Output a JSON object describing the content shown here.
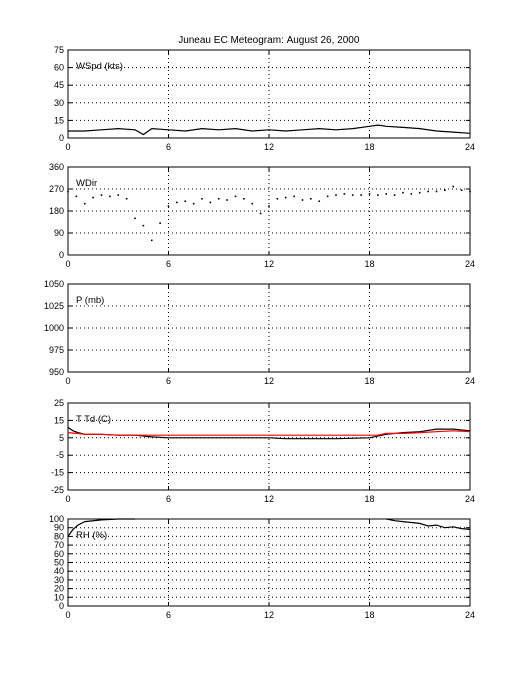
{
  "title": "Juneau EC Meteogram:",
  "date": "August 26, 2000",
  "chart_data": [
    {
      "id": "wspd",
      "type": "line",
      "label": "WSpd (kts)",
      "xlim": [
        0,
        24
      ],
      "xticks": [
        "0",
        "6",
        "12",
        "18",
        "24"
      ],
      "ylim": [
        0,
        75
      ],
      "yticks": [
        "0",
        "15",
        "30",
        "45",
        "60",
        "75"
      ],
      "grid": true,
      "series": [
        {
          "color": "#000000",
          "style": "line",
          "x": [
            0,
            1,
            2,
            3,
            4,
            4.5,
            5,
            6,
            7,
            8,
            9,
            10,
            11,
            12,
            13,
            14,
            15,
            16,
            17,
            18,
            18.5,
            19,
            20,
            21,
            22,
            23,
            24
          ],
          "y": [
            6,
            6,
            7,
            8,
            7,
            3,
            8,
            7,
            6,
            8,
            7,
            8,
            6,
            7,
            6,
            7,
            8,
            7,
            8,
            10,
            11,
            10,
            9,
            8,
            6,
            5,
            4
          ]
        }
      ]
    },
    {
      "id": "wdir",
      "type": "scatter",
      "label": "WDir",
      "xlim": [
        0,
        24
      ],
      "xticks": [
        "0",
        "6",
        "12",
        "18",
        "24"
      ],
      "ylim": [
        0,
        360
      ],
      "yticks": [
        "0",
        "90",
        "180",
        "270",
        "360"
      ],
      "grid": true,
      "series": [
        {
          "color": "#000000",
          "style": "points",
          "x": [
            0,
            0.5,
            1,
            1.5,
            2,
            2.5,
            3,
            3.5,
            4,
            4.5,
            5,
            5.5,
            6,
            6.5,
            7,
            7.5,
            8,
            8.5,
            9,
            9.5,
            10,
            10.5,
            11,
            11.5,
            12,
            12.5,
            13,
            13.5,
            14,
            14.5,
            15,
            15.5,
            16,
            16.5,
            17,
            17.5,
            18,
            18.5,
            19,
            19.5,
            20,
            20.5,
            21,
            21.5,
            22,
            22.5,
            23,
            23.5,
            24
          ],
          "y": [
            260,
            240,
            210,
            235,
            245,
            240,
            245,
            230,
            150,
            120,
            60,
            130,
            200,
            215,
            220,
            210,
            230,
            215,
            230,
            225,
            240,
            230,
            210,
            170,
            200,
            230,
            235,
            240,
            225,
            230,
            220,
            240,
            245,
            250,
            245,
            245,
            250,
            245,
            250,
            245,
            255,
            250,
            255,
            260,
            260,
            265,
            280,
            265,
            260
          ]
        }
      ]
    },
    {
      "id": "p",
      "type": "line",
      "label": "P (mb)",
      "xlim": [
        0,
        24
      ],
      "xticks": [
        "0",
        "6",
        "12",
        "18",
        "24"
      ],
      "ylim": [
        950,
        1050
      ],
      "yticks": [
        "950",
        "975",
        "1000",
        "1025",
        "1050"
      ],
      "grid": true,
      "series": []
    },
    {
      "id": "ttd",
      "type": "line",
      "label": "T Td (C)",
      "xlim": [
        0,
        24
      ],
      "xticks": [
        "0",
        "6",
        "12",
        "18",
        "24"
      ],
      "ylim": [
        -25,
        25
      ],
      "yticks": [
        "-25",
        "-15",
        "-5",
        "5",
        "15",
        "25"
      ],
      "grid": true,
      "series": [
        {
          "color": "#000000",
          "style": "line",
          "x": [
            0,
            0.3,
            0.6,
            1,
            2,
            3,
            4,
            5,
            6,
            8,
            10,
            12,
            13,
            14,
            16,
            18,
            19,
            20,
            21,
            22,
            23,
            24
          ],
          "y": [
            11,
            9,
            8,
            7,
            7,
            6.5,
            6.5,
            5.5,
            5,
            5,
            5,
            5,
            4.5,
            4.5,
            4.5,
            5,
            7,
            8,
            8.5,
            10,
            10,
            9
          ]
        },
        {
          "color": "#ff0000",
          "style": "line",
          "x": [
            0,
            0.5,
            1,
            2,
            3,
            4,
            18.5,
            19,
            20,
            21,
            22,
            23,
            24
          ],
          "y": [
            8,
            7.5,
            7,
            7,
            6.5,
            6.5,
            6.5,
            7.5,
            7.5,
            8,
            8.5,
            9,
            8.5
          ]
        }
      ]
    },
    {
      "id": "rh",
      "type": "line",
      "label": "RH (%)",
      "xlim": [
        0,
        24
      ],
      "xticks": [
        "0",
        "6",
        "12",
        "18",
        "24"
      ],
      "ylim": [
        0,
        100
      ],
      "yticks": [
        "0",
        "10",
        "20",
        "30",
        "40",
        "50",
        "60",
        "70",
        "80",
        "90",
        "100"
      ],
      "grid": true,
      "series": [
        {
          "color": "#000000",
          "style": "line",
          "x": [
            0,
            0.3,
            0.6,
            1,
            2,
            3,
            4
          ],
          "y": [
            80,
            88,
            93,
            97,
            99,
            100,
            100
          ]
        },
        {
          "color": "#000000",
          "style": "line",
          "x": [
            19,
            19.5,
            20,
            20.5,
            21,
            21.5,
            22,
            22.5,
            23,
            23.5,
            24
          ],
          "y": [
            100,
            98,
            97,
            96,
            95,
            92,
            93,
            90,
            91,
            89,
            88
          ]
        }
      ]
    }
  ]
}
